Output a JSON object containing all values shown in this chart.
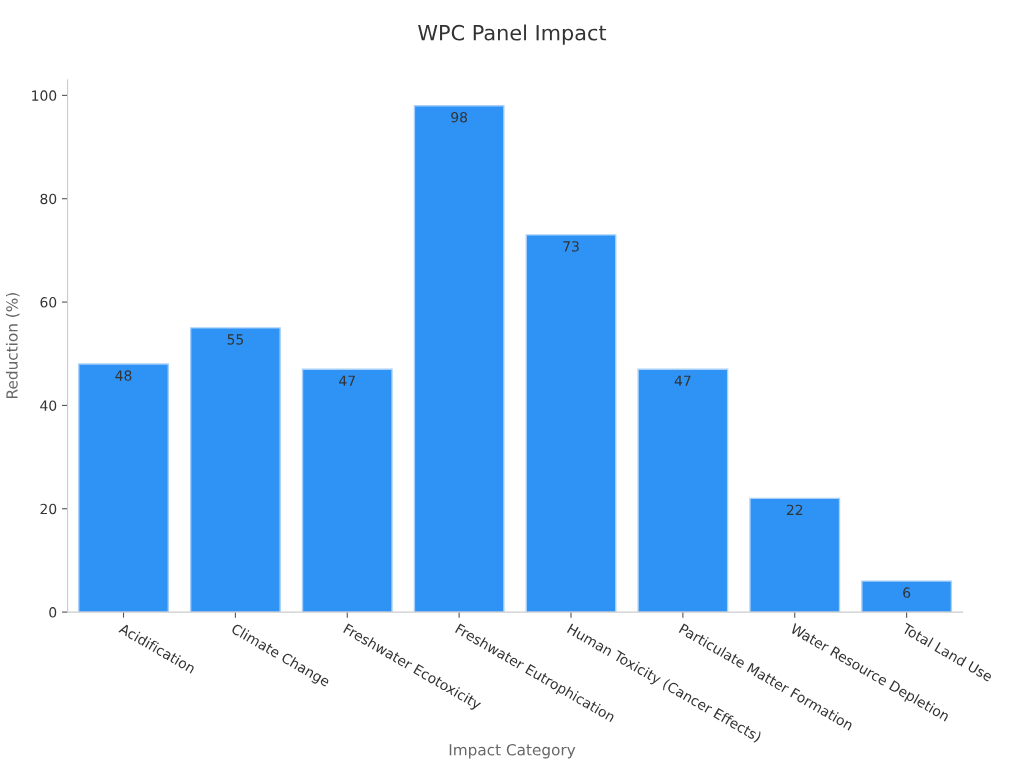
{
  "chart_data": {
    "type": "bar",
    "title": "WPC Panel Impact",
    "xlabel": "Impact Category",
    "ylabel": "Reduction (%)",
    "categories": [
      "Acidification",
      "Climate Change",
      "Freshwater Ecotoxicity",
      "Freshwater Eutrophication",
      "Human Toxicity (Cancer Effects)",
      "Particulate Matter Formation",
      "Water Resource Depletion",
      "Total Land Use"
    ],
    "values": [
      48,
      55,
      47,
      98,
      73,
      47,
      22,
      6
    ],
    "color": "#2e93f5",
    "ylim": [
      0,
      103
    ],
    "yticks": [
      0,
      20,
      40,
      60,
      80,
      100
    ],
    "grid": false,
    "legend": false,
    "data_labels": true
  }
}
